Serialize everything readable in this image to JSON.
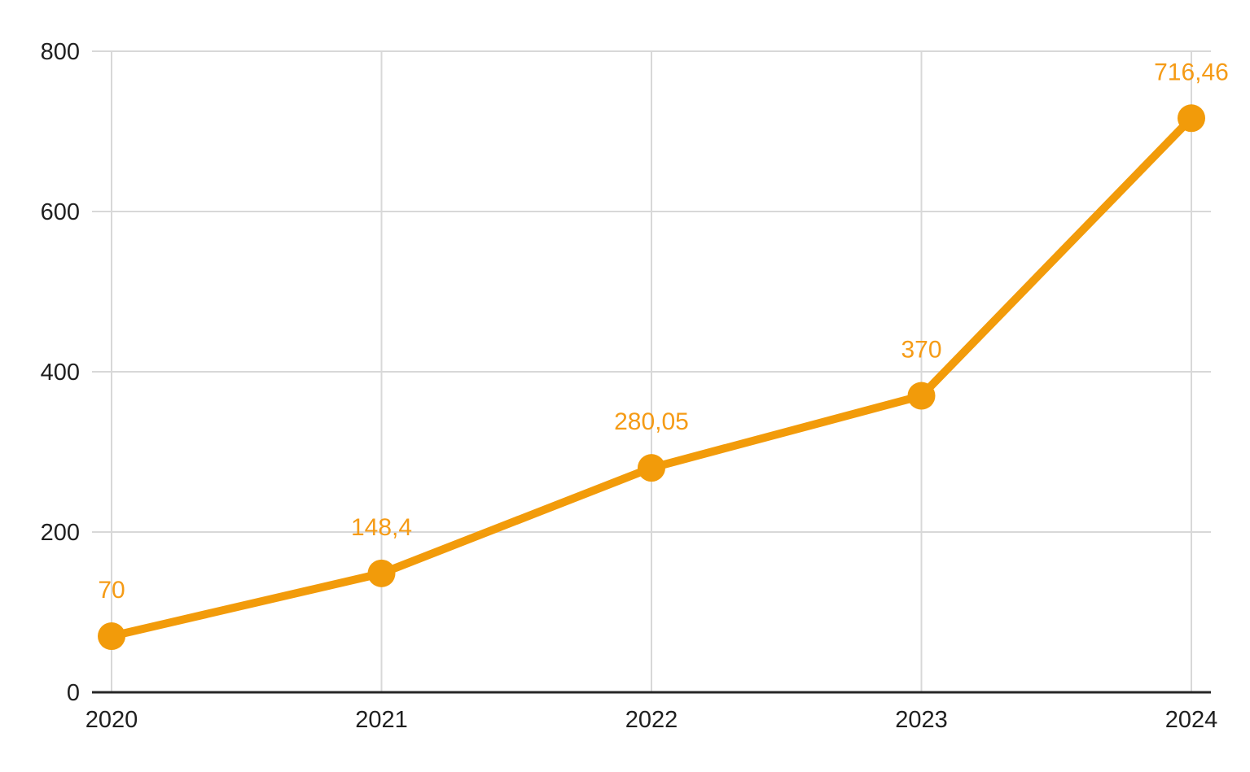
{
  "chart_data": {
    "type": "line",
    "categories": [
      "2020",
      "2021",
      "2022",
      "2023",
      "2024"
    ],
    "series": [
      {
        "name": "series-1",
        "values": [
          70,
          148.4,
          280.05,
          370,
          716.46
        ],
        "point_labels": [
          "70",
          "148,4",
          "280,05",
          "370",
          "716,46"
        ]
      }
    ],
    "title": "",
    "xlabel": "",
    "ylabel": "",
    "ylim": [
      0,
      800
    ],
    "yticks": [
      0,
      200,
      400,
      600,
      800
    ],
    "ytick_labels": [
      "0",
      "200",
      "400",
      "600",
      "800"
    ],
    "grid": true,
    "legend_position": "none",
    "colors": {
      "series": "#F29B0A",
      "point_label_text": "#F59B16",
      "gridline": "#D8D8D8",
      "axis_line": "#262626",
      "tick_text": "#1F1F1F",
      "background": "#FFFFFF"
    },
    "marker_radius": 17,
    "line_width": 10
  }
}
